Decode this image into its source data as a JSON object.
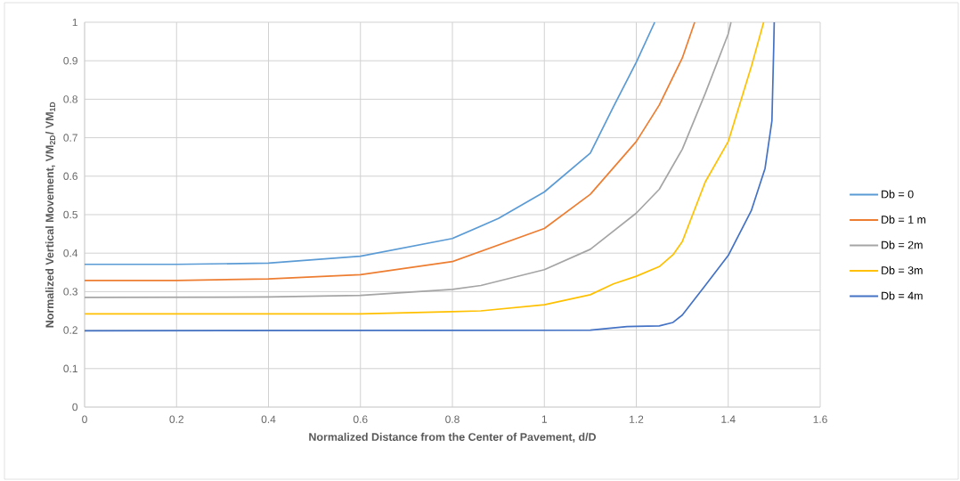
{
  "chart_data": {
    "type": "line",
    "xlabel": "Normalized Distance from the Center of Pavement, d/D",
    "ylabel": "Normalized Vertical Movement, VM$_{2D}$/ VM$_{1D}$",
    "xlim": [
      0,
      1.6
    ],
    "ylim": [
      0,
      1
    ],
    "xticks": [
      0,
      0.2,
      0.4,
      0.6,
      0.8,
      1,
      1.2,
      1.4,
      1.6
    ],
    "yticks": [
      0,
      0.1,
      0.2,
      0.3,
      0.4,
      0.5,
      0.6,
      0.7,
      0.8,
      0.9,
      1
    ],
    "grid": true,
    "legend": "right",
    "marker": "none",
    "line_style": "solid",
    "series": [
      {
        "name": "Db = 0",
        "color": "#5b9bd5",
        "x": [
          0,
          0.2,
          0.4,
          0.6,
          0.8,
          0.9,
          1.0,
          1.1,
          1.15,
          1.2,
          1.24
        ],
        "values": [
          0.371,
          0.371,
          0.374,
          0.392,
          0.438,
          0.49,
          0.559,
          0.66,
          0.78,
          0.896,
          1.0
        ]
      },
      {
        "name": "Db = 1 m",
        "color": "#ed7d31",
        "x": [
          0,
          0.2,
          0.4,
          0.6,
          0.8,
          1.0,
          1.1,
          1.2,
          1.25,
          1.3,
          1.327
        ],
        "values": [
          0.329,
          0.329,
          0.333,
          0.344,
          0.378,
          0.464,
          0.553,
          0.69,
          0.785,
          0.907,
          1.0
        ]
      },
      {
        "name": "Db = 2m",
        "color": "#a5a5a5",
        "x": [
          0,
          0.4,
          0.6,
          0.8,
          0.862,
          1.0,
          1.1,
          1.15,
          1.2,
          1.25,
          1.3,
          1.35,
          1.4,
          1.406
        ],
        "values": [
          0.285,
          0.286,
          0.29,
          0.306,
          0.316,
          0.357,
          0.41,
          0.457,
          0.504,
          0.566,
          0.67,
          0.815,
          0.97,
          1.0
        ]
      },
      {
        "name": "Db = 3m",
        "color": "#ffc000",
        "x": [
          0,
          0.6,
          0.8,
          0.862,
          1.0,
          1.1,
          1.15,
          1.2,
          1.25,
          1.28,
          1.3,
          1.35,
          1.4,
          1.45,
          1.477
        ],
        "values": [
          0.242,
          0.242,
          0.248,
          0.25,
          0.266,
          0.292,
          0.32,
          0.34,
          0.365,
          0.396,
          0.43,
          0.585,
          0.69,
          0.884,
          1.0
        ]
      },
      {
        "name": "Db = 4m",
        "color": "#4472c4",
        "x": [
          0,
          1.1,
          1.18,
          1.2,
          1.25,
          1.28,
          1.3,
          1.35,
          1.4,
          1.45,
          1.48,
          1.495,
          1.499,
          1.5
        ],
        "values": [
          0.198,
          0.2,
          0.209,
          0.21,
          0.211,
          0.22,
          0.239,
          0.316,
          0.394,
          0.51,
          0.62,
          0.744,
          0.94,
          1.0
        ]
      }
    ]
  }
}
